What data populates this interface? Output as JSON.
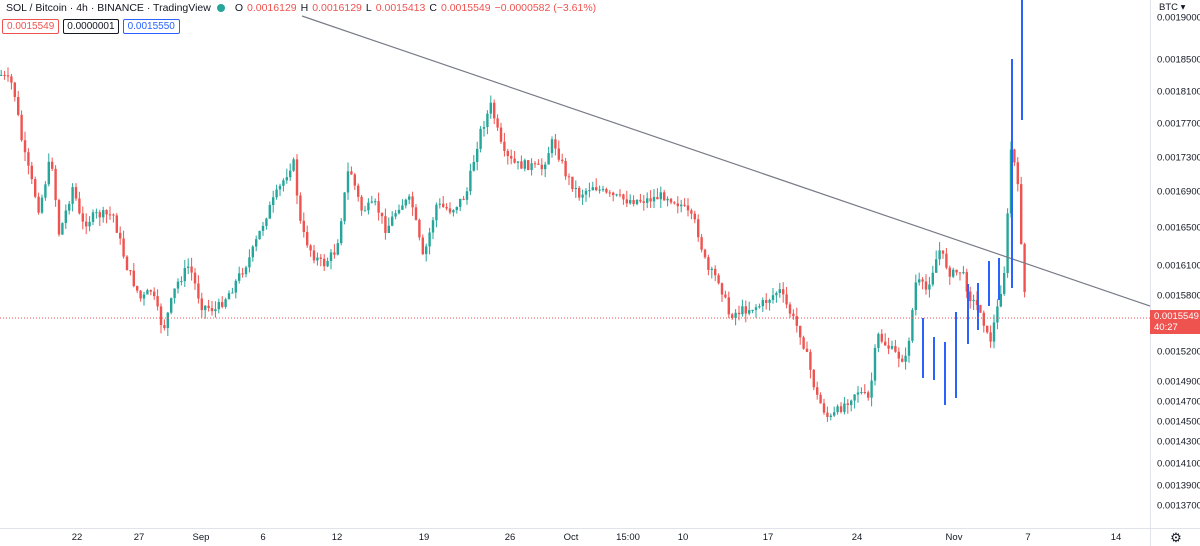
{
  "legend": {
    "title": "SOL / Bitcoin · 4h · BINANCE · TradingView",
    "o_label": "O",
    "o_value": "0.0016129",
    "h_label": "H",
    "h_value": "0.0016129",
    "l_label": "L",
    "l_value": "0.0015413",
    "c_label": "C",
    "c_value": "0.0015549",
    "change": "−0.0000582 (−3.61%)"
  },
  "order_panel": {
    "sell": "0.0015549",
    "spread": "0.0000001",
    "buy": "0.0015550"
  },
  "price_axis": {
    "currency": "BTC ▾",
    "ticks": [
      "0.0019000",
      "0.0018500",
      "0.0018100",
      "0.0017700",
      "0.0017300",
      "0.0016900",
      "0.0016500",
      "0.0016100",
      "0.0015800",
      "0.0015200",
      "0.0014900",
      "0.0014700",
      "0.0014500",
      "0.0014300",
      "0.0014100",
      "0.0013900",
      "0.0013700"
    ],
    "current_price": "0.0015549",
    "countdown": "40:27"
  },
  "time_axis": {
    "ticks": [
      "22",
      "27",
      "Sep",
      "6",
      "12",
      "19",
      "26",
      "Oct",
      "15:00",
      "10",
      "17",
      "24",
      "Nov",
      "7",
      "14"
    ]
  },
  "colors": {
    "up": "#26a69a",
    "down": "#ef5350",
    "trendline": "#787b86",
    "drawn_bars": "#2962ff",
    "current_price": "#ef5350"
  },
  "settings_icon": "gear-icon"
}
